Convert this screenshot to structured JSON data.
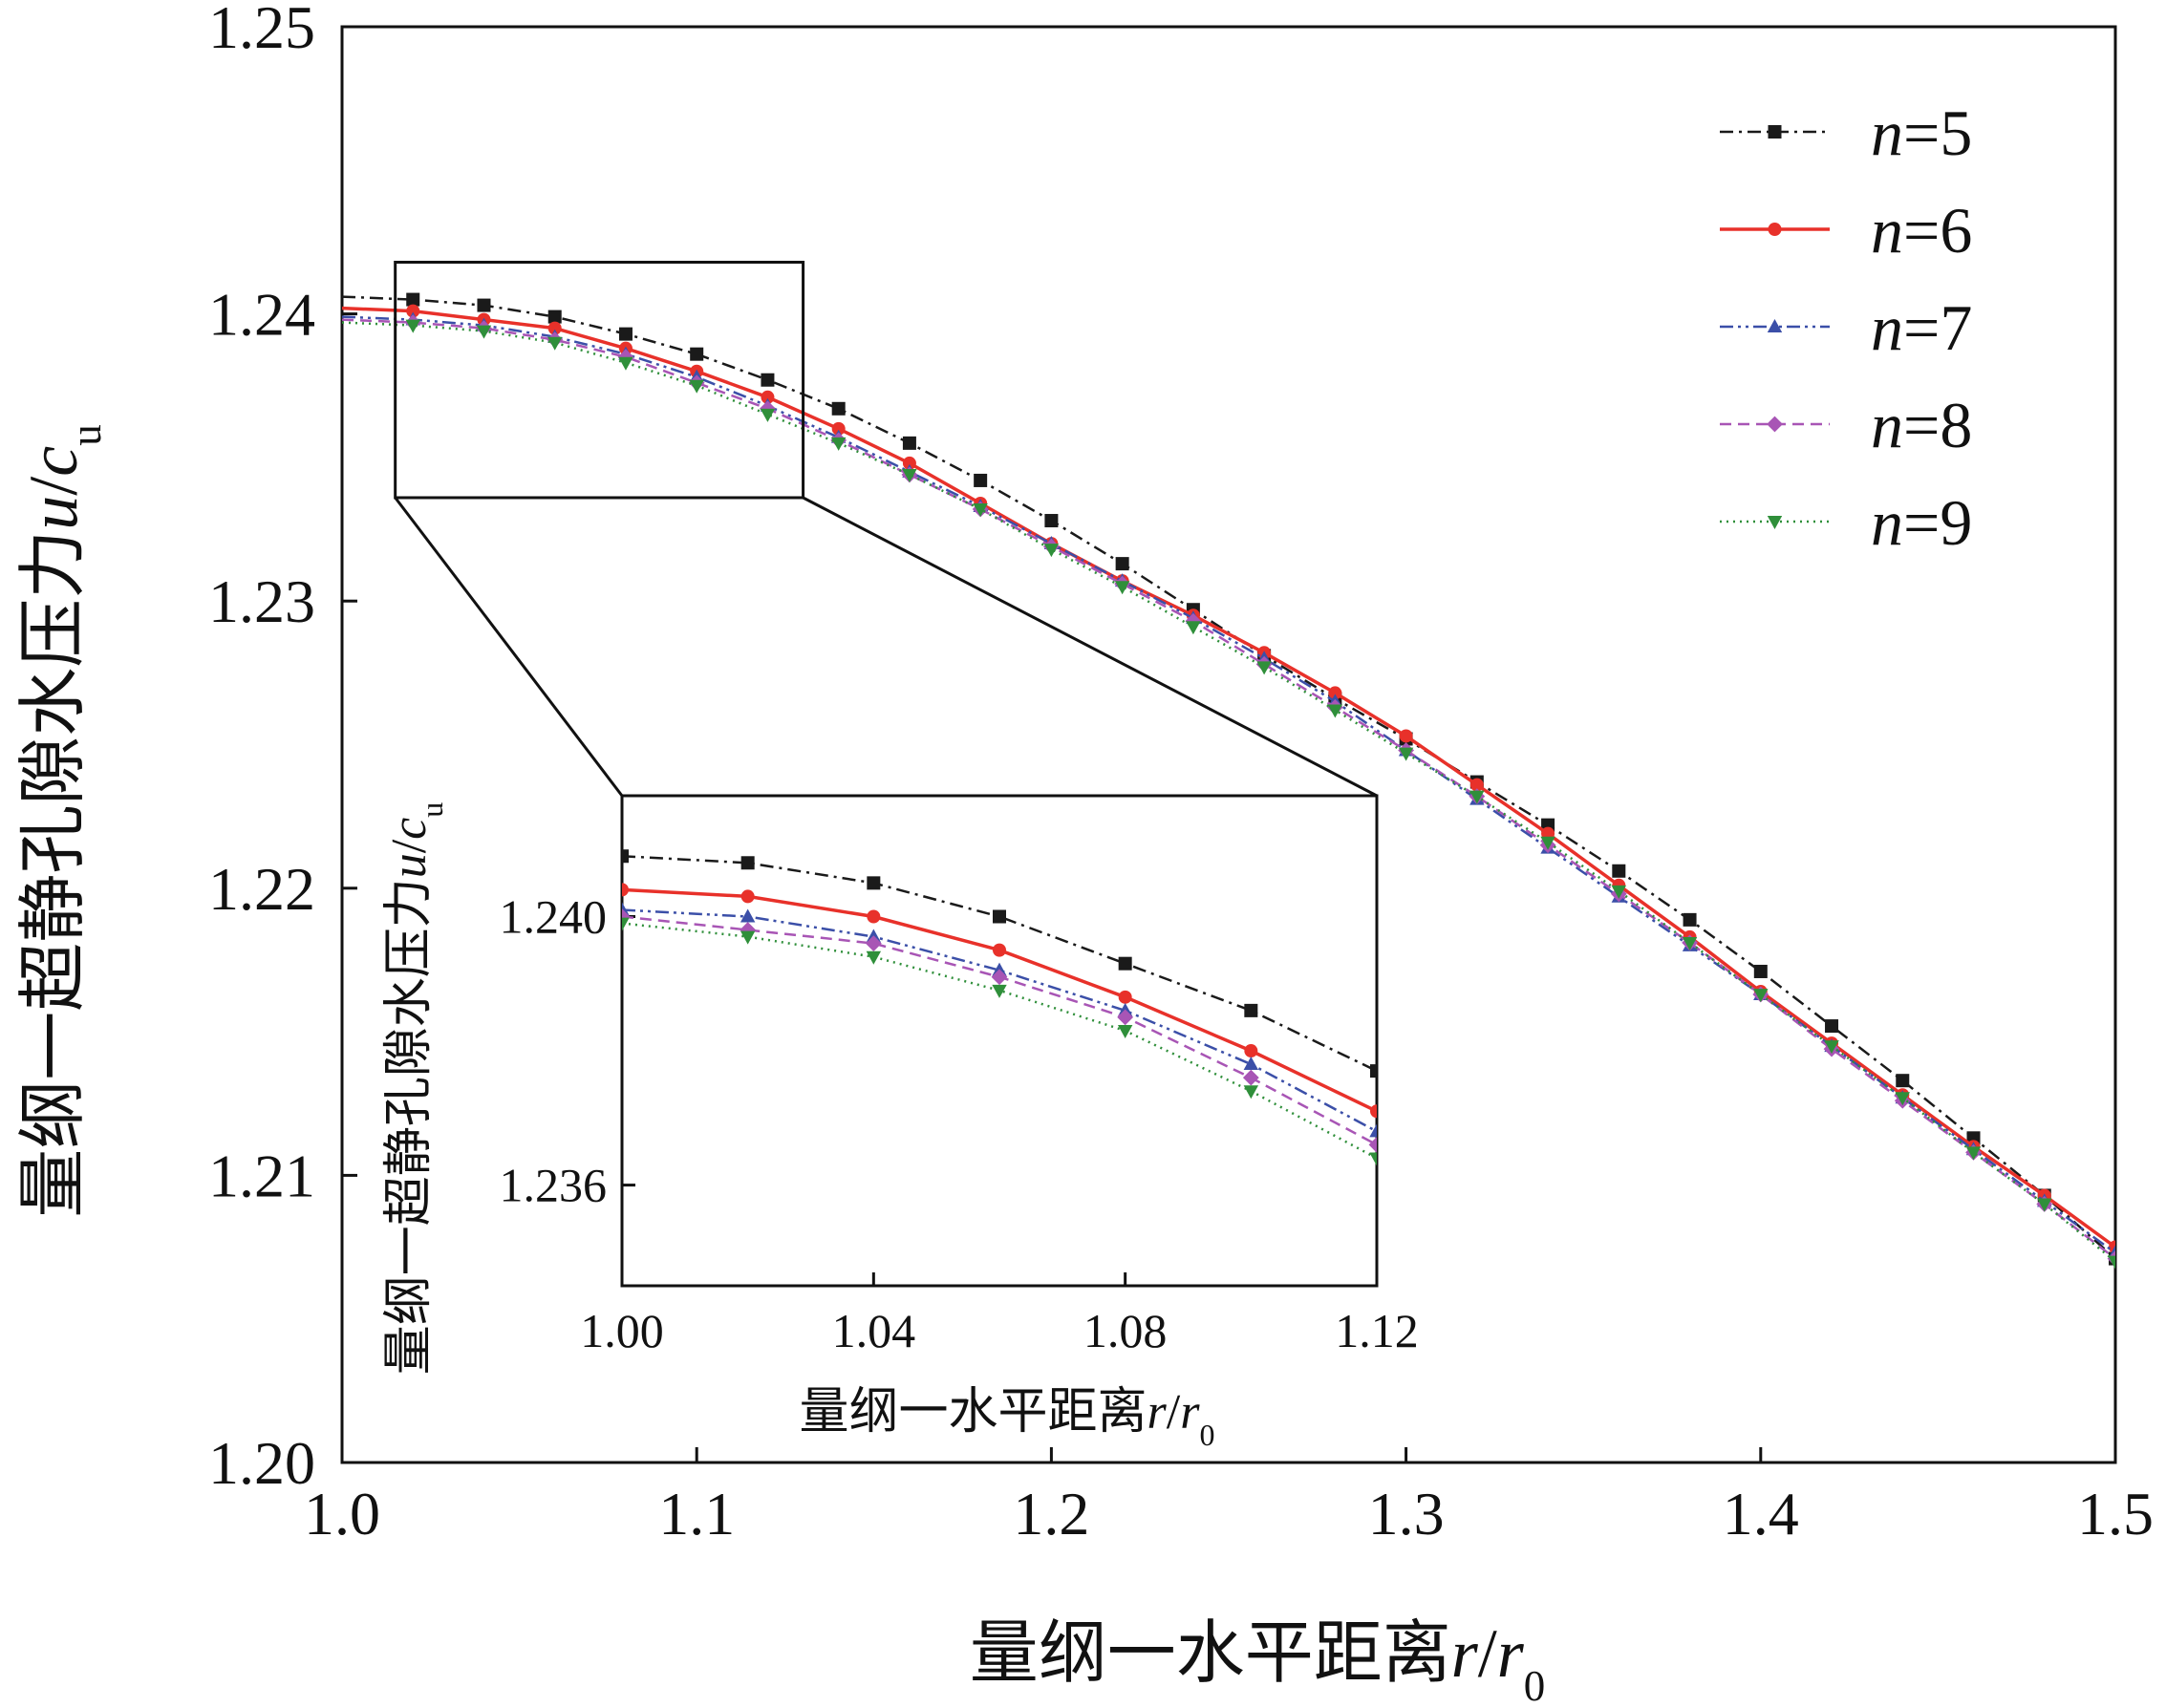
{
  "chart_data": [
    {
      "type": "line",
      "xlabel": {
        "text": "量纲一水平距离",
        "var": "r",
        "slash": "/",
        "var2": "r",
        "sub": "0"
      },
      "ylabel": {
        "text": "量纲一超静孔隙水压力",
        "var": "u",
        "slash": "/",
        "var2": "c",
        "sub": "u"
      },
      "xlim": [
        1.0,
        1.5
      ],
      "ylim": [
        1.2,
        1.25
      ],
      "xticks": [
        "1.0",
        "1.1",
        "1.2",
        "1.3",
        "1.4",
        "1.5"
      ],
      "yticks": [
        "1.20",
        "1.21",
        "1.22",
        "1.23",
        "1.24",
        "1.25"
      ],
      "legend_position": "top-right",
      "x": [
        1.0,
        1.02,
        1.04,
        1.06,
        1.08,
        1.1,
        1.12,
        1.14,
        1.16,
        1.18,
        1.2,
        1.22,
        1.24,
        1.26,
        1.28,
        1.3,
        1.32,
        1.34,
        1.36,
        1.38,
        1.4,
        1.42,
        1.44,
        1.46,
        1.48,
        1.5
      ],
      "series": [
        {
          "name_italic": "n",
          "name_rest": "=5",
          "color": "#1a1a1a",
          "dash": "dashdot",
          "marker": "square",
          "values": [
            1.2406,
            1.2405,
            1.2403,
            1.2399,
            1.2393,
            1.2386,
            1.2377,
            1.2367,
            1.2355,
            1.2342,
            1.2328,
            1.2313,
            1.2297,
            1.2281,
            1.2266,
            1.2252,
            1.2237,
            1.2222,
            1.2206,
            1.2189,
            1.2171,
            1.2152,
            1.2133,
            1.2113,
            1.2093,
            1.2071
          ]
        },
        {
          "name_italic": "n",
          "name_rest": "=6",
          "color": "#e8312a",
          "dash": "solid",
          "marker": "circle",
          "values": [
            1.2402,
            1.2401,
            1.2398,
            1.2395,
            1.2388,
            1.238,
            1.2371,
            1.236,
            1.2348,
            1.2334,
            1.232,
            1.2307,
            1.2295,
            1.2282,
            1.2268,
            1.2253,
            1.2236,
            1.2219,
            1.2201,
            1.2183,
            1.2164,
            1.2146,
            1.2128,
            1.211,
            1.2093,
            1.2075
          ]
        },
        {
          "name_italic": "n",
          "name_rest": "=7",
          "color": "#3b4fa8",
          "dash": "dashdotdot",
          "marker": "triangle-up",
          "values": [
            1.2399,
            1.2398,
            1.2396,
            1.2392,
            1.2386,
            1.2378,
            1.2368,
            1.2357,
            1.2345,
            1.2333,
            1.232,
            1.2307,
            1.2294,
            1.228,
            1.2265,
            1.2248,
            1.2231,
            1.2214,
            1.2197,
            1.218,
            1.2163,
            1.2145,
            1.2127,
            1.2109,
            1.2091,
            1.2073
          ]
        },
        {
          "name_italic": "n",
          "name_rest": "=8",
          "color": "#a855b5",
          "dash": "dashed",
          "marker": "diamond",
          "values": [
            1.2398,
            1.2397,
            1.2395,
            1.2391,
            1.2385,
            1.2376,
            1.2367,
            1.2356,
            1.2344,
            1.2332,
            1.2319,
            1.2306,
            1.2293,
            1.2278,
            1.2263,
            1.2248,
            1.2232,
            1.2215,
            1.2198,
            1.2181,
            1.2163,
            1.2144,
            1.2126,
            1.2108,
            1.209,
            1.2071
          ]
        },
        {
          "name_italic": "n",
          "name_rest": "=9",
          "color": "#2f8f3a",
          "dash": "dotted",
          "marker": "triangle-down",
          "values": [
            1.2397,
            1.2396,
            1.2394,
            1.239,
            1.2383,
            1.2375,
            1.2365,
            1.2355,
            1.2344,
            1.2332,
            1.2318,
            1.2305,
            1.2291,
            1.2277,
            1.2262,
            1.2247,
            1.2232,
            1.2216,
            1.2199,
            1.2181,
            1.2163,
            1.2145,
            1.2127,
            1.2108,
            1.209,
            1.207
          ]
        }
      ]
    },
    {
      "type": "line",
      "role": "inset",
      "xlabel": {
        "text": "量纲一水平距离",
        "var": "r",
        "slash": "/",
        "var2": "r",
        "sub": "0"
      },
      "ylabel": {
        "text": "量纲一超静孔隙水压力",
        "var": "u",
        "slash": "/",
        "var2": "c",
        "sub": "u"
      },
      "xlim": [
        1.0,
        1.12
      ],
      "ylim": [
        1.2345,
        1.2418
      ],
      "zoom_region": {
        "x": [
          1.0,
          1.12
        ],
        "y": [
          1.2345,
          1.2418
        ]
      },
      "xticks": [
        "1.00",
        "1.04",
        "1.08",
        "1.12"
      ],
      "yticks": [
        "1.236",
        "1.240"
      ],
      "x": [
        1.0,
        1.02,
        1.04,
        1.06,
        1.08,
        1.1,
        1.12
      ],
      "series": [
        {
          "name_italic": "n",
          "name_rest": "=5",
          "values": [
            1.2409,
            1.2408,
            1.2405,
            1.24,
            1.2393,
            1.2386,
            1.2377
          ]
        },
        {
          "name_italic": "n",
          "name_rest": "=6",
          "values": [
            1.2404,
            1.2403,
            1.24,
            1.2395,
            1.2388,
            1.238,
            1.2371
          ]
        },
        {
          "name_italic": "n",
          "name_rest": "=7",
          "values": [
            1.2401,
            1.24,
            1.2397,
            1.2392,
            1.2386,
            1.2378,
            1.2368
          ]
        },
        {
          "name_italic": "n",
          "name_rest": "=8",
          "values": [
            1.24,
            1.2398,
            1.2396,
            1.2391,
            1.2385,
            1.2376,
            1.2366
          ]
        },
        {
          "name_italic": "n",
          "name_rest": "=9",
          "values": [
            1.2399,
            1.2397,
            1.2394,
            1.2389,
            1.2383,
            1.2374,
            1.2364
          ]
        }
      ]
    }
  ]
}
